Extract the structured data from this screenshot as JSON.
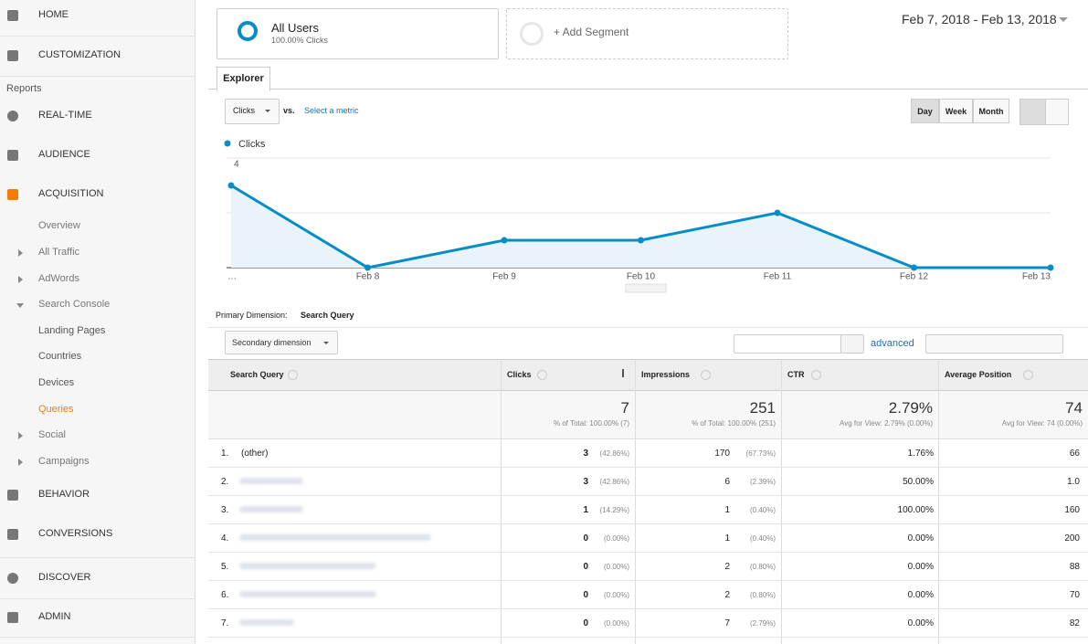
{
  "sidebar": {
    "items": [
      "HOME",
      "CUSTOMIZATION",
      "Reports",
      "REAL-TIME",
      "AUDIENCE",
      "ACQUISITION",
      "Overview",
      "All Traffic",
      "AdWords",
      "Search Console",
      "Landing Pages",
      "Countries",
      "Devices",
      "Queries",
      "Social",
      "Campaigns",
      "BEHAVIOR",
      "CONVERSIONS",
      "DISCOVER",
      "ADMIN"
    ]
  },
  "segments": {
    "active": {
      "name": "All Users",
      "detail": "100.00% Clicks"
    },
    "add": "+ Add Segment"
  },
  "date_range": "Feb 7, 2018 - Feb 13, 2018",
  "tab": "Explorer",
  "controls": {
    "metric": "Clicks",
    "vs": "vs.",
    "select_metric": "Select a metric",
    "periods": [
      "Day",
      "Week",
      "Month"
    ]
  },
  "chart_data": {
    "type": "line",
    "categories": [
      "…",
      "Feb 8",
      "Feb 9",
      "Feb 10",
      "Feb 11",
      "Feb 12",
      "Feb 13"
    ],
    "series": [
      {
        "name": "Clicks",
        "color": "#058dc7",
        "values": [
          3,
          0,
          1,
          1,
          2,
          0,
          0
        ]
      }
    ],
    "ylim": [
      0,
      4
    ],
    "yticks": [
      2,
      4
    ],
    "grid": true
  },
  "primary_dimension": {
    "label": "Primary Dimension:",
    "value": "Search Query"
  },
  "table_controls": {
    "secondary": "Secondary dimension",
    "advanced": "advanced"
  },
  "table": {
    "columns": [
      "Search Query",
      "Clicks",
      "Impressions",
      "CTR",
      "Average Position"
    ],
    "totals": [
      {
        "value": "7",
        "note": "% of Total: 100.00% (7)"
      },
      {
        "value": "251",
        "note": "% of Total: 100.00% (251)"
      },
      {
        "value": "2.79%",
        "note": "Avg for View: 2.79% (0.00%)"
      },
      {
        "value": "74",
        "note": "Avg for View: 74 (0.00%)"
      }
    ],
    "rows": [
      {
        "rank": "1.",
        "query": "(other)",
        "clicks": "3",
        "clicks_share": "(42.86%)",
        "impressions": "170",
        "impressions_share": "(67.73%)",
        "ctr": "1.76%",
        "avg_position": "66"
      },
      {
        "rank": "2.",
        "clicks": "3",
        "clicks_share": "(42.86%)",
        "impressions": "6",
        "impressions_share": "(2.39%)",
        "ctr": "50.00%",
        "avg_position": "1.0"
      },
      {
        "rank": "3.",
        "clicks": "1",
        "clicks_share": "(14.29%)",
        "impressions": "1",
        "impressions_share": "(0.40%)",
        "ctr": "100.00%",
        "avg_position": "160"
      },
      {
        "rank": "4.",
        "clicks": "0",
        "clicks_share": "(0.00%)",
        "impressions": "1",
        "impressions_share": "(0.40%)",
        "ctr": "0.00%",
        "avg_position": "200"
      },
      {
        "rank": "5.",
        "clicks": "0",
        "clicks_share": "(0.00%)",
        "impressions": "2",
        "impressions_share": "(0.80%)",
        "ctr": "0.00%",
        "avg_position": "88"
      },
      {
        "rank": "6.",
        "clicks": "0",
        "clicks_share": "(0.00%)",
        "impressions": "2",
        "impressions_share": "(0.80%)",
        "ctr": "0.00%",
        "avg_position": "70"
      },
      {
        "rank": "7.",
        "clicks": "0",
        "clicks_share": "(0.00%)",
        "impressions": "7",
        "impressions_share": "(2.79%)",
        "ctr": "0.00%",
        "avg_position": "82"
      }
    ]
  }
}
